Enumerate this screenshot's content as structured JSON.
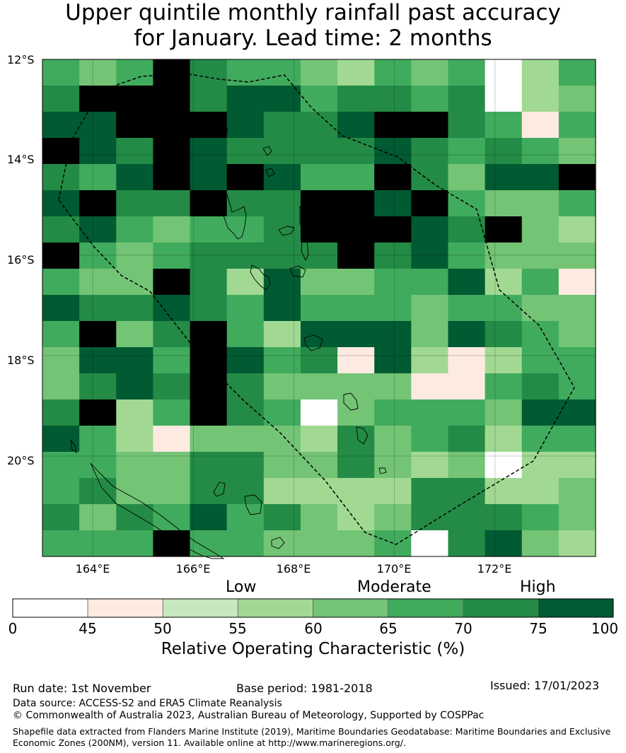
{
  "title": {
    "line1": "Upper quintile monthly rainfall past accuracy",
    "line2": "for January. Lead time: 2 months"
  },
  "map": {
    "lon_range": [
      163,
      174
    ],
    "lat_range": [
      -21.9,
      -12
    ],
    "lat_ticks": [
      "12°S",
      "14°S",
      "16°S",
      "18°S",
      "20°S"
    ],
    "lon_ticks": [
      "164°E",
      "166°E",
      "168°E",
      "170°E",
      "172°E"
    ],
    "grid_values": [
      [
        5,
        4,
        5,
        8,
        6,
        5,
        5,
        4,
        3,
        5,
        4,
        5,
        0,
        3,
        5
      ],
      [
        6,
        8,
        8,
        8,
        6,
        7,
        7,
        5,
        6,
        6,
        5,
        6,
        0,
        3,
        4
      ],
      [
        7,
        7,
        8,
        8,
        8,
        7,
        6,
        6,
        7,
        8,
        8,
        6,
        5,
        1,
        5
      ],
      [
        8,
        7,
        6,
        8,
        7,
        6,
        6,
        6,
        6,
        7,
        6,
        5,
        6,
        5,
        4
      ],
      [
        6,
        5,
        7,
        8,
        7,
        8,
        7,
        5,
        5,
        8,
        6,
        4,
        7,
        7,
        8
      ],
      [
        7,
        8,
        6,
        6,
        8,
        6,
        6,
        8,
        8,
        7,
        8,
        5,
        4,
        4,
        5
      ],
      [
        6,
        7,
        5,
        4,
        5,
        5,
        6,
        8,
        8,
        8,
        7,
        6,
        8,
        4,
        3
      ],
      [
        8,
        5,
        4,
        5,
        6,
        6,
        6,
        6,
        8,
        6,
        7,
        5,
        4,
        4,
        4
      ],
      [
        5,
        4,
        4,
        8,
        6,
        3,
        7,
        4,
        4,
        5,
        5,
        7,
        3,
        5,
        1
      ],
      [
        7,
        6,
        6,
        7,
        6,
        5,
        7,
        5,
        5,
        5,
        4,
        5,
        5,
        4,
        4
      ],
      [
        5,
        8,
        4,
        6,
        8,
        5,
        3,
        7,
        7,
        7,
        4,
        7,
        6,
        5,
        4
      ],
      [
        4,
        7,
        7,
        5,
        8,
        7,
        5,
        6,
        1,
        7,
        3,
        1,
        3,
        5,
        5
      ],
      [
        4,
        6,
        7,
        6,
        8,
        6,
        4,
        4,
        4,
        4,
        1,
        1,
        5,
        6,
        5
      ],
      [
        6,
        8,
        3,
        5,
        8,
        6,
        5,
        0,
        4,
        5,
        5,
        5,
        4,
        7,
        7
      ],
      [
        7,
        5,
        3,
        1,
        4,
        4,
        4,
        3,
        6,
        4,
        5,
        6,
        3,
        5,
        5
      ],
      [
        5,
        5,
        4,
        4,
        6,
        6,
        4,
        4,
        6,
        4,
        3,
        4,
        0,
        3,
        3
      ],
      [
        5,
        6,
        4,
        4,
        6,
        6,
        3,
        3,
        3,
        3,
        6,
        6,
        3,
        3,
        4
      ],
      [
        6,
        4,
        6,
        5,
        7,
        5,
        6,
        4,
        3,
        4,
        6,
        6,
        6,
        5,
        4
      ],
      [
        5,
        5,
        5,
        8,
        5,
        5,
        4,
        4,
        4,
        5,
        0,
        6,
        7,
        4,
        3
      ]
    ]
  },
  "colorbar": {
    "ticks": [
      "0",
      "45",
      "50",
      "55",
      "60",
      "65",
      "70",
      "75",
      "100"
    ],
    "categories": [
      "Low",
      "Moderate",
      "High"
    ],
    "label": "Relative Operating Characteristic (%)",
    "colors": [
      "#ffffff",
      "#fdebe2",
      "#c8e8c0",
      "#a1d993",
      "#74c476",
      "#41ab5d",
      "#238b45",
      "#005a32"
    ]
  },
  "footer": {
    "run_date": "Run date: 1st November",
    "base_period": "Base period: 1981-2018",
    "issued": "Issued: 17/01/2023",
    "data_source": "Data source: ACCESS-S2 and ERA5 Climate Reanalysis",
    "copyright": "© Commonwealth of Australia 2023, Australian Bureau of Meteorology, Supported by COSPPac",
    "shapefile_line1": "Shapefile data extracted from Flanders Marine Institute (2019), Maritime Boundaries Geodatabase: Maritime Boundaries and Exclusive",
    "shapefile_line2": "Economic Zones (200NM), version 11. Available online at http://www.marineregions.org/."
  }
}
